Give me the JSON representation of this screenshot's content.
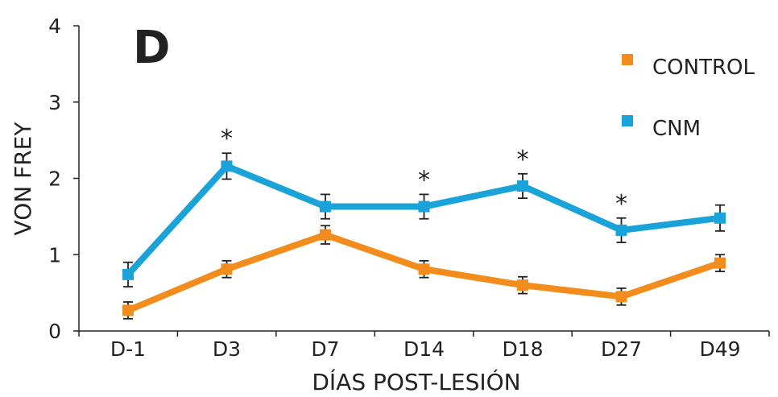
{
  "chart_data": {
    "type": "line",
    "panel_label": "D",
    "xlabel": "DÍAS POST-LESIÓN",
    "ylabel": "VON FREY",
    "categories": [
      "D-1",
      "D3",
      "D7",
      "D14",
      "D18",
      "D27",
      "D49"
    ],
    "ylim": [
      0,
      4
    ],
    "yticks": [
      0,
      1,
      2,
      3,
      4
    ],
    "grid": false,
    "legend_position": "top-right",
    "series": [
      {
        "name": "CONTROL",
        "color": "#f28c1c",
        "values": [
          0.27,
          0.81,
          1.26,
          0.81,
          0.6,
          0.45,
          0.89
        ],
        "errors": [
          0.11,
          0.11,
          0.12,
          0.11,
          0.11,
          0.11,
          0.11
        ]
      },
      {
        "name": "CNM",
        "color": "#1aa3d9",
        "values": [
          0.74,
          2.16,
          1.63,
          1.63,
          1.9,
          1.32,
          1.48
        ],
        "errors": [
          0.16,
          0.17,
          0.16,
          0.16,
          0.16,
          0.16,
          0.17
        ]
      }
    ],
    "significance": {
      "symbol": "*",
      "categories": [
        "D3",
        "D14",
        "D18",
        "D27"
      ]
    },
    "panel_label_color": "#c2185b"
  }
}
